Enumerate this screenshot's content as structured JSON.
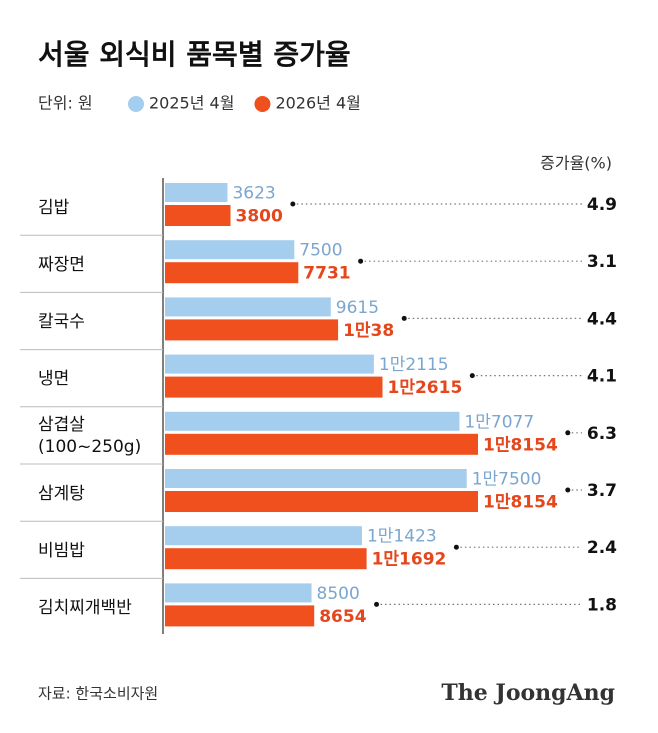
{
  "chart_data": {
    "type": "bar",
    "orientation": "horizontal",
    "title": "서울 외식비 품목별 증가율",
    "unit": "단위: 원",
    "categories": [
      "김밥",
      "짜장면",
      "칼국수",
      "냉면",
      "삼겹살\n(100~250g)",
      "삼계탕",
      "비빔밥",
      "김치찌개백반"
    ],
    "series": [
      {
        "name": "2025년 4월",
        "color": "#a5cdee",
        "label_color": "#7aa6cf",
        "values": [
          3623,
          7500,
          9615,
          12115,
          17077,
          17500,
          11423,
          8500
        ],
        "value_labels": [
          "3623",
          "7500",
          "9615",
          "1만2115",
          "1만7077",
          "1만7500",
          "1만1423",
          "8500"
        ]
      },
      {
        "name": "2026년 4월",
        "color": "#f0501e",
        "label_color": "#e5461b",
        "values": [
          3800,
          7731,
          10038,
          12615,
          18154,
          18154,
          11692,
          8654
        ],
        "value_labels": [
          "3800",
          "7731",
          "1만38",
          "1만2615",
          "1만8154",
          "1만8154",
          "1만1692",
          "8654"
        ]
      }
    ],
    "growth": {
      "name": "증가율(%)",
      "values": [
        4.9,
        3.1,
        4.4,
        4.1,
        6.3,
        3.7,
        2.4,
        1.8
      ]
    },
    "source": "자료: 한국소비자원",
    "brand": "The JoongAng"
  }
}
